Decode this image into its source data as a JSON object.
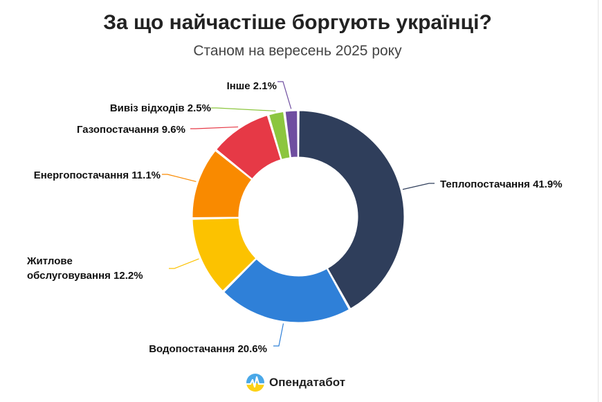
{
  "header": {
    "title": "За що найчастіше боргують українці?",
    "subtitle": "Станом на вересень 2025 року"
  },
  "brand": {
    "name": "Опендатабот",
    "icon": "opendatabot-logo-icon"
  },
  "chart_data": {
    "type": "pie",
    "variant": "donut",
    "title": "За що найчастіше боргують українці?",
    "subtitle": "Станом на вересень 2025 року",
    "categories": [
      "Теплопостачання",
      "Водопостачання",
      "Житлове обслуговування",
      "Енергопостачання",
      "Газопостачання",
      "Вивіз відходів",
      "Інше"
    ],
    "values": [
      41.9,
      20.6,
      12.2,
      11.1,
      9.6,
      2.5,
      2.1
    ],
    "unit": "%",
    "colors": [
      "#2f3e5b",
      "#2f80d8",
      "#fcc200",
      "#f98a00",
      "#e63946",
      "#8cc63f",
      "#6f4ea0"
    ],
    "labels": [
      [
        "Теплопостачання 41.9%"
      ],
      [
        "Водопостачання 20.6%"
      ],
      [
        "Житлове",
        "обслуговування 12.2%"
      ],
      [
        "Енергопостачання 11.1%"
      ],
      [
        "Газопостачання 9.6%"
      ],
      [
        "Вивіз відходів 2.5%"
      ],
      [
        "Інше 2.1%"
      ]
    ],
    "legend": "none"
  }
}
